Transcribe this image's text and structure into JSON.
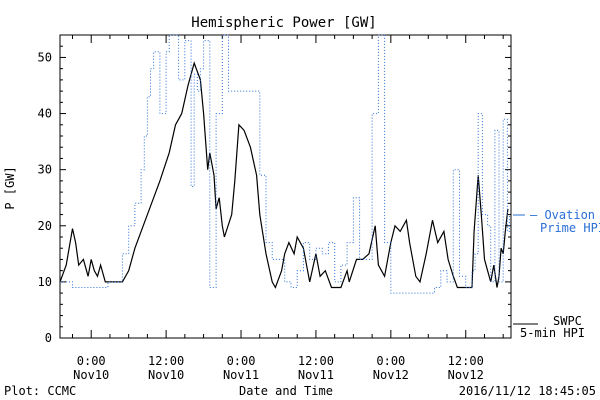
{
  "footer": {
    "plot_credit": "Plot: CCMC",
    "timestamp": "2016/11/12 18:45:05"
  },
  "chart_data": {
    "type": "line",
    "title": "Hemispheric Power [GW]",
    "xlabel": "Date and Time",
    "ylabel": "P [GW]",
    "xlim": [
      "2016-11-09 19:00",
      "2016-11-12 19:15"
    ],
    "ylim": [
      0,
      54
    ],
    "yticks": [
      0,
      10,
      20,
      30,
      40,
      50
    ],
    "xticks": [
      {
        "t": "2016-11-10 00:00",
        "time": "0:00",
        "day": "Nov10"
      },
      {
        "t": "2016-11-10 12:00",
        "time": "12:00",
        "day": "Nov10"
      },
      {
        "t": "2016-11-11 00:00",
        "time": "0:00",
        "day": "Nov11"
      },
      {
        "t": "2016-11-11 12:00",
        "time": "12:00",
        "day": "Nov11"
      },
      {
        "t": "2016-11-12 00:00",
        "time": "0:00",
        "day": "Nov12"
      },
      {
        "t": "2016-11-12 12:00",
        "time": "12:00",
        "day": "Nov12"
      }
    ],
    "colors": {
      "swpc": "#000000",
      "ovation": "#2a6fd6"
    },
    "legend": [
      {
        "series": "swpc",
        "lines": [
          "SWPC",
          "5-min HPI"
        ],
        "position": "bottom-right outside"
      },
      {
        "series": "ovation",
        "lines": [
          "Ovation",
          "Prime HPI"
        ],
        "position": "right outside"
      }
    ],
    "series": [
      {
        "key": "swpc",
        "style": "solid",
        "points": [
          [
            "2016-11-09 19:00",
            10
          ],
          [
            "2016-11-09 20:00",
            13
          ],
          [
            "2016-11-09 21:00",
            19.5
          ],
          [
            "2016-11-09 21:30",
            17
          ],
          [
            "2016-11-09 22:00",
            13
          ],
          [
            "2016-11-09 22:45",
            14
          ],
          [
            "2016-11-09 23:30",
            11
          ],
          [
            "2016-11-10 00:00",
            14
          ],
          [
            "2016-11-10 00:30",
            12
          ],
          [
            "2016-11-10 01:00",
            11
          ],
          [
            "2016-11-10 01:30",
            13
          ],
          [
            "2016-11-10 02:15",
            10
          ],
          [
            "2016-11-10 05:00",
            10
          ],
          [
            "2016-11-10 06:00",
            12
          ],
          [
            "2016-11-10 07:00",
            16
          ],
          [
            "2016-11-10 09:00",
            22
          ],
          [
            "2016-11-10 11:00",
            28
          ],
          [
            "2016-11-10 12:30",
            33
          ],
          [
            "2016-11-10 13:30",
            38
          ],
          [
            "2016-11-10 14:30",
            40
          ],
          [
            "2016-11-10 15:30",
            45
          ],
          [
            "2016-11-10 16:30",
            49
          ],
          [
            "2016-11-10 17:30",
            46
          ],
          [
            "2016-11-10 18:00",
            40
          ],
          [
            "2016-11-10 18:40",
            30
          ],
          [
            "2016-11-10 19:00",
            33
          ],
          [
            "2016-11-10 19:40",
            29
          ],
          [
            "2016-11-10 20:00",
            23
          ],
          [
            "2016-11-10 20:30",
            25
          ],
          [
            "2016-11-10 21:00",
            20
          ],
          [
            "2016-11-10 21:20",
            18
          ],
          [
            "2016-11-10 22:30",
            22
          ],
          [
            "2016-11-10 23:00",
            28
          ],
          [
            "2016-11-10 23:40",
            38
          ],
          [
            "2016-11-11 00:30",
            37
          ],
          [
            "2016-11-11 01:30",
            34
          ],
          [
            "2016-11-11 02:30",
            29
          ],
          [
            "2016-11-11 03:00",
            22
          ],
          [
            "2016-11-11 04:00",
            15
          ],
          [
            "2016-11-11 05:00",
            10
          ],
          [
            "2016-11-11 05:30",
            9
          ],
          [
            "2016-11-11 06:30",
            12
          ],
          [
            "2016-11-11 07:00",
            15
          ],
          [
            "2016-11-11 07:40",
            17
          ],
          [
            "2016-11-11 08:30",
            15
          ],
          [
            "2016-11-11 09:00",
            18
          ],
          [
            "2016-11-11 10:00",
            16
          ],
          [
            "2016-11-11 10:40",
            12
          ],
          [
            "2016-11-11 11:00",
            10
          ],
          [
            "2016-11-11 12:00",
            15
          ],
          [
            "2016-11-11 12:40",
            11
          ],
          [
            "2016-11-11 13:30",
            12
          ],
          [
            "2016-11-11 14:30",
            9
          ],
          [
            "2016-11-11 16:00",
            9
          ],
          [
            "2016-11-11 17:00",
            12
          ],
          [
            "2016-11-11 17:20",
            10
          ],
          [
            "2016-11-11 18:30",
            14
          ],
          [
            "2016-11-11 19:30",
            14
          ],
          [
            "2016-11-11 20:30",
            15
          ],
          [
            "2016-11-11 21:30",
            20
          ],
          [
            "2016-11-11 22:00",
            13
          ],
          [
            "2016-11-11 23:00",
            11
          ],
          [
            "2016-11-12 00:00",
            17
          ],
          [
            "2016-11-12 00:40",
            20
          ],
          [
            "2016-11-12 01:30",
            19
          ],
          [
            "2016-11-12 02:30",
            21
          ],
          [
            "2016-11-12 03:00",
            17
          ],
          [
            "2016-11-12 04:00",
            11
          ],
          [
            "2016-11-12 04:40",
            10
          ],
          [
            "2016-11-12 05:40",
            15
          ],
          [
            "2016-11-12 06:40",
            21
          ],
          [
            "2016-11-12 07:30",
            17
          ],
          [
            "2016-11-12 08:30",
            19
          ],
          [
            "2016-11-12 09:10",
            14
          ],
          [
            "2016-11-12 10:00",
            11
          ],
          [
            "2016-11-12 10:40",
            9
          ],
          [
            "2016-11-12 12:00",
            9
          ],
          [
            "2016-11-12 13:00",
            9
          ],
          [
            "2016-11-12 13:20",
            19
          ],
          [
            "2016-11-12 14:00",
            29
          ],
          [
            "2016-11-12 14:30",
            22
          ],
          [
            "2016-11-12 15:00",
            14
          ],
          [
            "2016-11-12 15:30",
            12
          ],
          [
            "2016-11-12 16:00",
            10
          ],
          [
            "2016-11-12 16:30",
            13
          ],
          [
            "2016-11-12 17:00",
            9
          ],
          [
            "2016-11-12 17:20",
            11
          ],
          [
            "2016-11-12 17:40",
            16
          ],
          [
            "2016-11-12 18:00",
            15
          ],
          [
            "2016-11-12 18:20",
            19
          ],
          [
            "2016-11-12 18:45",
            23
          ]
        ]
      },
      {
        "key": "ovation",
        "style": "dotted-step",
        "points": [
          [
            "2016-11-09 19:00",
            10
          ],
          [
            "2016-11-09 21:00",
            9
          ],
          [
            "2016-11-10 02:00",
            9
          ],
          [
            "2016-11-10 02:40",
            10
          ],
          [
            "2016-11-10 04:00",
            10
          ],
          [
            "2016-11-10 05:00",
            15
          ],
          [
            "2016-11-10 06:00",
            20
          ],
          [
            "2016-11-10 07:00",
            24
          ],
          [
            "2016-11-10 08:00",
            30
          ],
          [
            "2016-11-10 08:30",
            36
          ],
          [
            "2016-11-10 09:00",
            43
          ],
          [
            "2016-11-10 09:30",
            48
          ],
          [
            "2016-11-10 10:00",
            51
          ],
          [
            "2016-11-10 11:00",
            40
          ],
          [
            "2016-11-10 12:00",
            51
          ],
          [
            "2016-11-10 12:30",
            54
          ],
          [
            "2016-11-10 14:00",
            46
          ],
          [
            "2016-11-10 15:00",
            53
          ],
          [
            "2016-11-10 16:00",
            27
          ],
          [
            "2016-11-10 16:30",
            47
          ],
          [
            "2016-11-10 17:00",
            44
          ],
          [
            "2016-11-10 17:30",
            48
          ],
          [
            "2016-11-10 18:00",
            53
          ],
          [
            "2016-11-10 19:00",
            9
          ],
          [
            "2016-11-10 20:00",
            40
          ],
          [
            "2016-11-10 21:00",
            54
          ],
          [
            "2016-11-10 22:00",
            44
          ],
          [
            "2016-11-11 02:00",
            44
          ],
          [
            "2016-11-11 03:00",
            29
          ],
          [
            "2016-11-11 04:00",
            17
          ],
          [
            "2016-11-11 05:00",
            14
          ],
          [
            "2016-11-11 07:00",
            10
          ],
          [
            "2016-11-11 08:00",
            9
          ],
          [
            "2016-11-11 09:00",
            12
          ],
          [
            "2016-11-11 10:00",
            17
          ],
          [
            "2016-11-11 11:00",
            14
          ],
          [
            "2016-11-11 12:00",
            16
          ],
          [
            "2016-11-11 13:00",
            15
          ],
          [
            "2016-11-11 14:00",
            17
          ],
          [
            "2016-11-11 15:00",
            10
          ],
          [
            "2016-11-11 16:00",
            13
          ],
          [
            "2016-11-11 17:00",
            17
          ],
          [
            "2016-11-11 18:00",
            25
          ],
          [
            "2016-11-11 19:00",
            14
          ],
          [
            "2016-11-11 21:00",
            40
          ],
          [
            "2016-11-11 22:00",
            54
          ],
          [
            "2016-11-11 23:00",
            17
          ],
          [
            "2016-11-12 00:00",
            8
          ],
          [
            "2016-11-12 06:00",
            8
          ],
          [
            "2016-11-12 07:00",
            9
          ],
          [
            "2016-11-12 08:00",
            12
          ],
          [
            "2016-11-12 09:00",
            10
          ],
          [
            "2016-11-12 10:00",
            30
          ],
          [
            "2016-11-12 11:00",
            11
          ],
          [
            "2016-11-12 12:00",
            9
          ],
          [
            "2016-11-12 13:00",
            12
          ],
          [
            "2016-11-12 13:30",
            15
          ],
          [
            "2016-11-12 14:00",
            40
          ],
          [
            "2016-11-12 14:40",
            22
          ],
          [
            "2016-11-12 15:30",
            20
          ],
          [
            "2016-11-12 16:00",
            10
          ],
          [
            "2016-11-12 16:40",
            37
          ],
          [
            "2016-11-12 17:20",
            10
          ],
          [
            "2016-11-12 18:00",
            39
          ],
          [
            "2016-11-12 18:40",
            19
          ],
          [
            "2016-11-12 19:00",
            22
          ]
        ]
      }
    ]
  }
}
